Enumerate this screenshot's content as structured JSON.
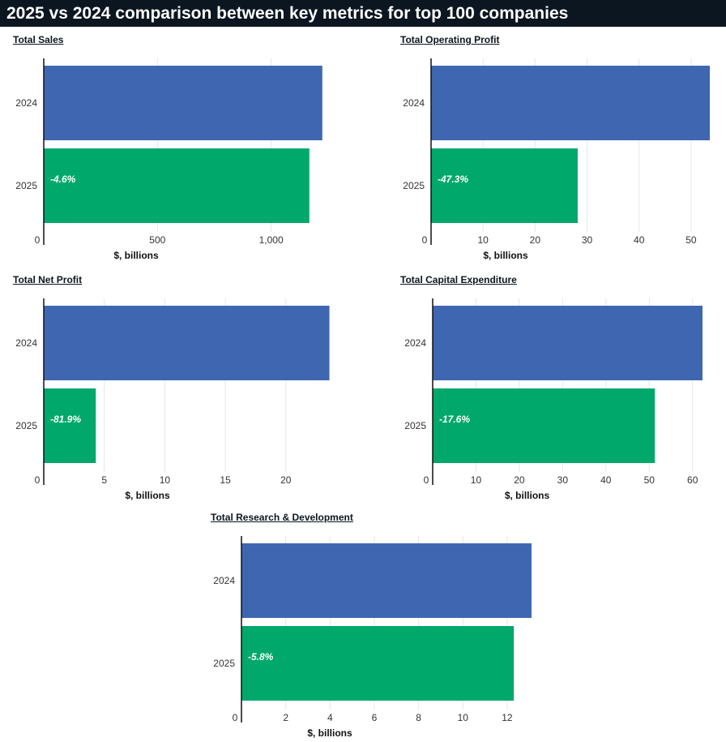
{
  "header": {
    "title": "2025 vs 2024 comparison between key metrics for top 100 companies"
  },
  "colors": {
    "bar_2024": "#3f67b1",
    "bar_2025": "#00a86b",
    "grid": "#e5e7eb",
    "axis": "#111111",
    "header_bg": "#0b1620"
  },
  "chart_data": [
    {
      "type": "bar",
      "orientation": "horizontal",
      "title": "Total Sales",
      "xlabel": "$, billions",
      "categories": [
        "2024",
        "2025"
      ],
      "values": [
        1225,
        1168
      ],
      "data_labels": [
        "",
        "-4.6%"
      ],
      "ticks": [
        0,
        500,
        1000
      ],
      "tick_labels": [
        "0",
        "500",
        "1,000"
      ],
      "xlim": [
        0,
        1240
      ],
      "grid": true
    },
    {
      "type": "bar",
      "orientation": "horizontal",
      "title": "Total Operating Profit",
      "xlabel": "$, billions",
      "categories": [
        "2024",
        "2025"
      ],
      "values": [
        53.6,
        28.2
      ],
      "data_labels": [
        "",
        "-47.3%"
      ],
      "ticks": [
        0,
        10,
        20,
        30,
        40,
        50
      ],
      "tick_labels": [
        "0",
        "10",
        "20",
        "30",
        "40",
        "50"
      ],
      "xlim": [
        0,
        53.6
      ],
      "grid": true
    },
    {
      "type": "bar",
      "orientation": "horizontal",
      "title": "Total Net Profit",
      "xlabel": "$, billions",
      "categories": [
        "2024",
        "2025"
      ],
      "values": [
        23.6,
        4.3
      ],
      "data_labels": [
        "",
        "-81.9%"
      ],
      "ticks": [
        0,
        5,
        10,
        15,
        20
      ],
      "tick_labels": [
        "0",
        "5",
        "10",
        "15",
        "20"
      ],
      "xlim": [
        0,
        24.5
      ],
      "grid": true
    },
    {
      "type": "bar",
      "orientation": "horizontal",
      "title": "Total Capital Expenditure",
      "xlabel": "$, billions",
      "categories": [
        "2024",
        "2025"
      ],
      "values": [
        62.3,
        51.3
      ],
      "data_labels": [
        "",
        "-17.6%"
      ],
      "ticks": [
        0,
        10,
        20,
        30,
        40,
        50,
        60
      ],
      "tick_labels": [
        "0",
        "10",
        "20",
        "30",
        "40",
        "50",
        "60"
      ],
      "xlim": [
        0,
        62.3
      ],
      "grid": true
    },
    {
      "type": "bar",
      "orientation": "horizontal",
      "title": "Total Research & Development",
      "xlabel": "$, billions",
      "categories": [
        "2024",
        "2025"
      ],
      "values": [
        13.1,
        12.3
      ],
      "data_labels": [
        "",
        "-5.8%"
      ],
      "ticks": [
        0,
        2,
        4,
        6,
        8,
        10,
        12
      ],
      "tick_labels": [
        "0",
        "2",
        "4",
        "6",
        "8",
        "10",
        "12"
      ],
      "xlim": [
        0,
        13.1
      ],
      "grid": true
    }
  ]
}
